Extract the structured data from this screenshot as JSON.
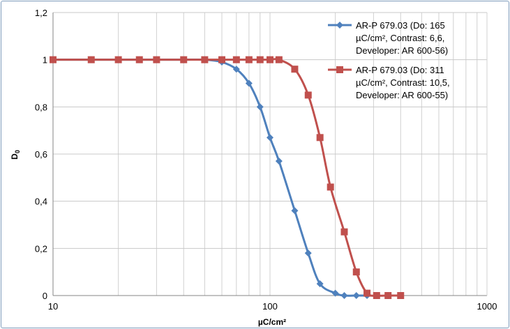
{
  "chart_data": {
    "type": "line",
    "title": "",
    "xlabel": "µC/cm²",
    "ylabel_main": "D",
    "ylabel_sub": "0",
    "xscale": "log",
    "xlim": [
      10,
      1000
    ],
    "ylim": [
      0,
      1.2
    ],
    "grid": true,
    "legend_position": "top-right",
    "x_tick_labels": [
      {
        "value": 10,
        "label": "10"
      },
      {
        "value": 100,
        "label": "100"
      },
      {
        "value": 1000,
        "label": "1000"
      }
    ],
    "y_tick_labels": [
      {
        "value": 0,
        "label": "0"
      },
      {
        "value": 0.2,
        "label": "0,2"
      },
      {
        "value": 0.4,
        "label": "0,4"
      },
      {
        "value": 0.6,
        "label": "0,6"
      },
      {
        "value": 0.8,
        "label": "0,8"
      },
      {
        "value": 1.0,
        "label": "1"
      },
      {
        "value": 1.2,
        "label": "1,2"
      }
    ],
    "series": [
      {
        "name_lines": [
          "AR-P 679.03 (Do: 165",
          "µC/cm², Contrast: 6,6,",
          "Developer: AR 600-56)"
        ],
        "color": "#4f81bd",
        "marker": "diamond",
        "x": [
          10,
          15,
          20,
          25,
          30,
          40,
          50,
          60,
          70,
          80,
          90,
          100,
          110,
          130,
          150,
          170,
          200,
          220,
          250,
          280
        ],
        "y": [
          1,
          1,
          1,
          1,
          1,
          1,
          1,
          0.99,
          0.96,
          0.9,
          0.8,
          0.67,
          0.57,
          0.36,
          0.18,
          0.05,
          0.01,
          0,
          0,
          0
        ]
      },
      {
        "name_lines": [
          "AR-P 679.03 (Do: 311",
          "µC/cm², Contrast: 10,5,",
          "Developer: AR 600-55)"
        ],
        "color": "#c0504d",
        "marker": "square",
        "x": [
          10,
          15,
          20,
          25,
          30,
          40,
          50,
          60,
          70,
          80,
          90,
          100,
          110,
          130,
          150,
          170,
          190,
          220,
          250,
          280,
          310,
          350,
          400
        ],
        "y": [
          1,
          1,
          1,
          1,
          1,
          1,
          1,
          1,
          1,
          1,
          1,
          1,
          1,
          0.96,
          0.85,
          0.67,
          0.46,
          0.27,
          0.1,
          0.01,
          0,
          0,
          0
        ]
      }
    ]
  }
}
